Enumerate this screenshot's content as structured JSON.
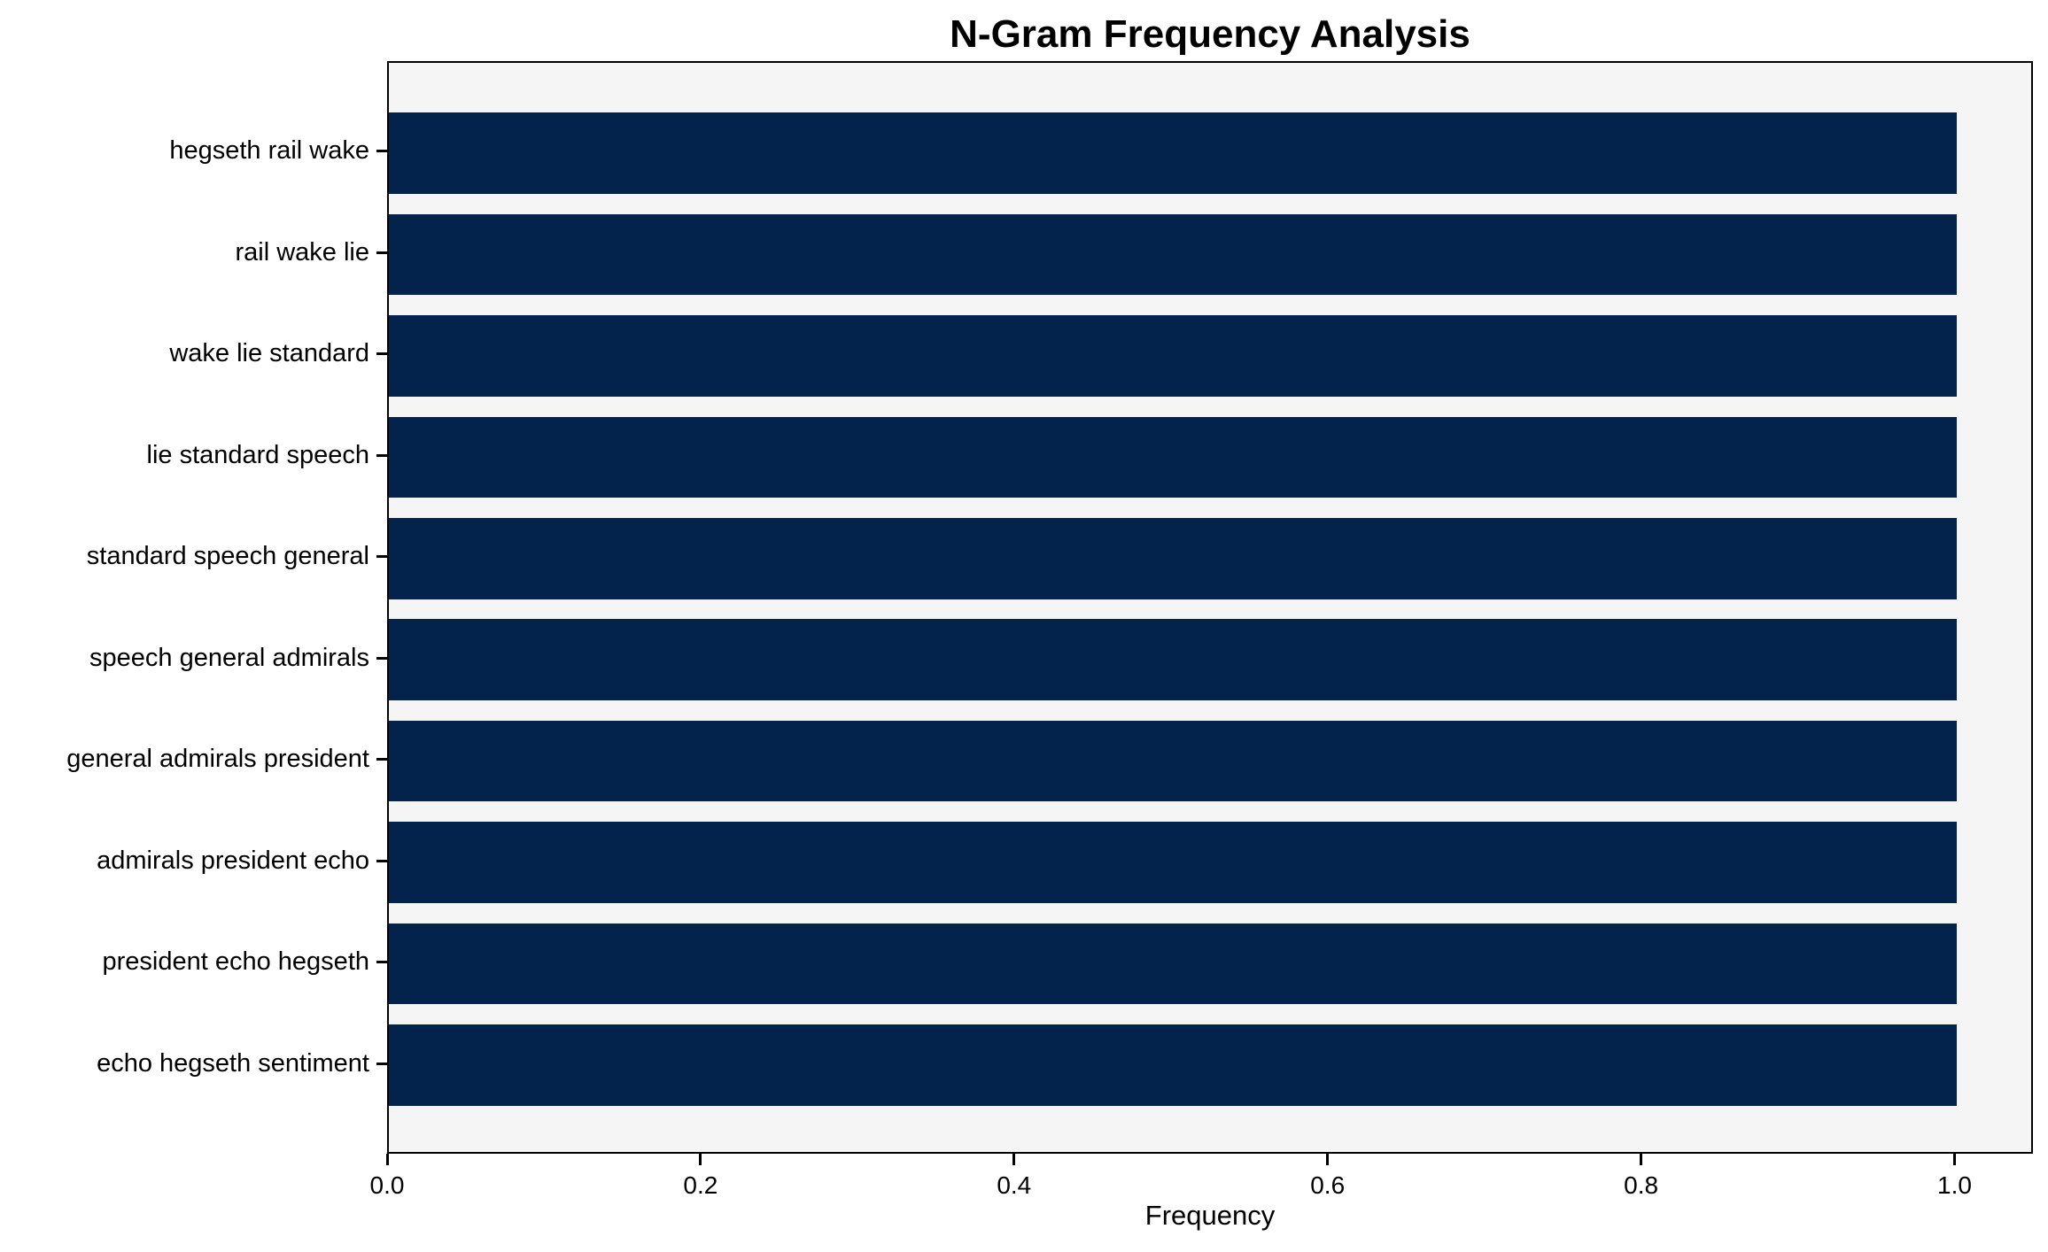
{
  "chart_data": {
    "type": "bar",
    "orientation": "horizontal",
    "title": "N-Gram Frequency Analysis",
    "xlabel": "Frequency",
    "ylabel": "",
    "categories": [
      "hegseth rail wake",
      "rail wake lie",
      "wake lie standard",
      "lie standard speech",
      "standard speech general",
      "speech general admirals",
      "general admirals president",
      "admirals president echo",
      "president echo hegseth",
      "echo hegseth sentiment"
    ],
    "values": [
      1.0,
      1.0,
      1.0,
      1.0,
      1.0,
      1.0,
      1.0,
      1.0,
      1.0,
      1.0
    ],
    "x_tick_labels": [
      "0.0",
      "0.2",
      "0.4",
      "0.6",
      "0.8",
      "1.0"
    ],
    "x_tick_values": [
      0.0,
      0.2,
      0.4,
      0.6,
      0.8,
      1.0
    ],
    "xlim": [
      0,
      1.05
    ],
    "bar_color": "#03234d",
    "plot_bg_color": "#f5f5f5",
    "figure_bg_color": "#ffffff",
    "text_color": "#000000",
    "grid": "off",
    "legend": "none"
  }
}
